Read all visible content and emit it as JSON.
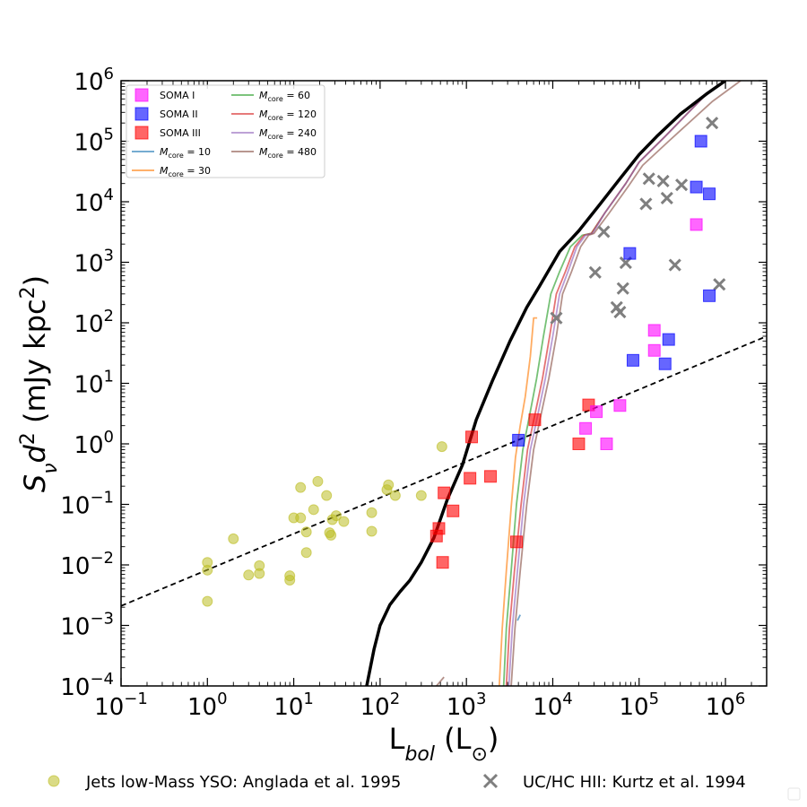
{
  "chart_data": {
    "type": "scatter",
    "x_scale": "log",
    "y_scale": "log",
    "xlim": [
      0.1,
      3000000
    ],
    "ylim": [
      0.0001,
      1000000
    ],
    "xlabel": "L_bol (L⊙)",
    "ylabel": "S_ν d² (mJy kpc²)",
    "x_ticks": [
      {
        "base": "10",
        "exp": "−1",
        "value": 0.1
      },
      {
        "base": "10",
        "exp": "0",
        "value": 1
      },
      {
        "base": "10",
        "exp": "1",
        "value": 10
      },
      {
        "base": "10",
        "exp": "2",
        "value": 100
      },
      {
        "base": "10",
        "exp": "3",
        "value": 1000
      },
      {
        "base": "10",
        "exp": "4",
        "value": 10000
      },
      {
        "base": "10",
        "exp": "5",
        "value": 100000
      },
      {
        "base": "10",
        "exp": "6",
        "value": 1000000
      }
    ],
    "y_ticks": [
      {
        "base": "10",
        "exp": "−4",
        "value": 0.0001
      },
      {
        "base": "10",
        "exp": "−3",
        "value": 0.001
      },
      {
        "base": "10",
        "exp": "−2",
        "value": 0.01
      },
      {
        "base": "10",
        "exp": "−1",
        "value": 0.1
      },
      {
        "base": "10",
        "exp": "0",
        "value": 1
      },
      {
        "base": "10",
        "exp": "1",
        "value": 10
      },
      {
        "base": "10",
        "exp": "2",
        "value": 100
      },
      {
        "base": "10",
        "exp": "3",
        "value": 1000
      },
      {
        "base": "10",
        "exp": "4",
        "value": 10000
      },
      {
        "base": "10",
        "exp": "5",
        "value": 100000
      },
      {
        "base": "10",
        "exp": "6",
        "value": 1000000
      }
    ],
    "legend_top_left": [
      {
        "label": "SOMA I",
        "kind": "square",
        "color": "#ff00ff"
      },
      {
        "label": "SOMA II",
        "kind": "square",
        "color": "#0000ff"
      },
      {
        "label": "SOMA III",
        "kind": "square",
        "color": "#ff0000"
      },
      {
        "prefix": "M",
        "sub": "core",
        "label": " = 10",
        "kind": "line",
        "color": "#1f77b4"
      },
      {
        "prefix": "M",
        "sub": "core",
        "label": " = 30",
        "kind": "line",
        "color": "#ff7f0e"
      },
      {
        "prefix": "M",
        "sub": "core",
        "label": " = 60",
        "kind": "line",
        "color": "#2ca02c"
      },
      {
        "prefix": "M",
        "sub": "core",
        "label": " = 120",
        "kind": "line",
        "color": "#d62728"
      },
      {
        "prefix": "M",
        "sub": "core",
        "label": " = 240",
        "kind": "line",
        "color": "#9467bd"
      },
      {
        "prefix": "M",
        "sub": "core",
        "label": " = 480",
        "kind": "line",
        "color": "#8c564b"
      }
    ],
    "legend_bottom": [
      {
        "label": "Jets low-Mass YSO: Anglada et al. 1995",
        "kind": "circle",
        "color": "#bcbd22"
      },
      {
        "label": "UC/HC HII: Kurtz et al. 1994",
        "kind": "cross",
        "color": "#7f7f7f"
      }
    ],
    "series": {
      "soma1": {
        "color": "#ff00ff",
        "points": [
          [
            24000.0,
            1.8
          ],
          [
            32000.0,
            3.4
          ],
          [
            42000.0,
            1.0
          ],
          [
            60000.0,
            4.3
          ],
          [
            150000.0,
            75
          ],
          [
            150000.0,
            35
          ],
          [
            460000.0,
            4200
          ]
        ]
      },
      "soma2": {
        "color": "#0000ff",
        "points": [
          [
            4000.0,
            1.15
          ],
          [
            78000.0,
            1400
          ],
          [
            85000.0,
            24
          ],
          [
            200000.0,
            21
          ],
          [
            220000.0,
            53
          ],
          [
            460000.0,
            17500
          ],
          [
            520000.0,
            100000
          ],
          [
            650000.0,
            13500
          ],
          [
            650000.0,
            280
          ]
        ]
      },
      "soma3": {
        "color": "#ff0000",
        "points": [
          [
            450.0,
            0.03
          ],
          [
            480.0,
            0.04
          ],
          [
            530.0,
            0.011
          ],
          [
            550.0,
            0.155
          ],
          [
            700.0,
            0.078
          ],
          [
            1100.0,
            0.27
          ],
          [
            1150.0,
            1.3
          ],
          [
            1900.0,
            0.29
          ],
          [
            3800.0,
            0.024
          ],
          [
            6200.0,
            2.5
          ],
          [
            20000.0,
            1.0
          ],
          [
            26000.0,
            4.4
          ]
        ]
      },
      "anglada": {
        "color": "#bcbd22",
        "points": [
          [
            1,
            0.0025
          ],
          [
            1,
            0.0082
          ],
          [
            1,
            0.011
          ],
          [
            2,
            0.027
          ],
          [
            3,
            0.0068
          ],
          [
            4,
            0.0072
          ],
          [
            4,
            0.0097
          ],
          [
            9,
            0.0056
          ],
          [
            9,
            0.0066
          ],
          [
            10,
            0.06
          ],
          [
            12,
            0.06
          ],
          [
            12,
            0.19
          ],
          [
            14,
            0.016
          ],
          [
            14,
            0.035
          ],
          [
            17,
            0.082
          ],
          [
            19,
            0.24
          ],
          [
            24,
            0.14
          ],
          [
            26,
            0.034
          ],
          [
            27,
            0.031
          ],
          [
            28,
            0.056
          ],
          [
            31,
            0.065
          ],
          [
            38,
            0.052
          ],
          [
            80,
            0.036
          ],
          [
            80,
            0.073
          ],
          [
            120,
            0.175
          ],
          [
            125,
            0.21
          ],
          [
            150,
            0.14
          ],
          [
            300,
            0.14
          ],
          [
            520,
            0.9
          ]
        ]
      },
      "kurtz": {
        "color": "#7f7f7f",
        "points": [
          [
            11000.0,
            120
          ],
          [
            31000.0,
            680
          ],
          [
            39000.0,
            3200
          ],
          [
            55000.0,
            180
          ],
          [
            60000.0,
            150
          ],
          [
            65000.0,
            370
          ],
          [
            70000.0,
            980
          ],
          [
            120000.0,
            9200
          ],
          [
            130000.0,
            24000
          ],
          [
            190000.0,
            22000
          ],
          [
            210000.0,
            11500
          ],
          [
            260000.0,
            900
          ],
          [
            310000.0,
            19000
          ],
          [
            700000.0,
            200000
          ],
          [
            850000.0,
            430
          ]
        ]
      },
      "fit_dashed": {
        "color": "#000000",
        "points": [
          [
            0.1,
            0.0021
          ],
          [
            3000000,
            60
          ]
        ]
      },
      "envelope_black": {
        "color": "#000000",
        "points": [
          [
            70,
            0.0001
          ],
          [
            85,
            0.0004
          ],
          [
            100,
            0.001
          ],
          [
            130,
            0.0022
          ],
          [
            170,
            0.0036
          ],
          [
            220,
            0.0055
          ],
          [
            300,
            0.011
          ],
          [
            420,
            0.028
          ],
          [
            600,
            0.12
          ],
          [
            900,
            0.45
          ],
          [
            1300,
            2.5
          ],
          [
            2000,
            11
          ],
          [
            3200,
            50
          ],
          [
            5000,
            180
          ],
          [
            7000,
            400
          ],
          [
            12000,
            1500
          ],
          [
            20000,
            3300
          ],
          [
            35000,
            9000
          ],
          [
            60000,
            24000
          ],
          [
            100000,
            60000
          ],
          [
            160000,
            120000
          ],
          [
            300000,
            280000
          ],
          [
            600000,
            600000
          ],
          [
            1000000,
            1000000
          ]
        ]
      },
      "mcore_curves": [
        {
          "name_mass": "10",
          "color": "#1f77b4",
          "points": [
            [
              3900,
              0.0012
            ],
            [
              4200,
              0.0015
            ]
          ]
        },
        {
          "name_mass": "30",
          "color": "#ff7f0e",
          "points": [
            [
              2400,
              0.0001
            ],
            [
              2600,
              0.0009
            ],
            [
              2900,
              0.008
            ],
            [
              3300,
              0.09
            ],
            [
              3700,
              0.6
            ],
            [
              4200,
              2.0
            ],
            [
              4800,
              6
            ],
            [
              5500,
              28
            ],
            [
              6000,
              120
            ],
            [
              6600,
              120
            ]
          ]
        },
        {
          "name_mass": "60",
          "color": "#2ca02c",
          "points": [
            [
              2700,
              0.0001
            ],
            [
              2900,
              0.0009
            ],
            [
              3300,
              0.008
            ],
            [
              3800,
              0.1
            ],
            [
              4500,
              0.8
            ],
            [
              5400,
              3.0
            ],
            [
              6500,
              12
            ],
            [
              7800,
              60
            ],
            [
              9500,
              300
            ],
            [
              12000,
              700
            ],
            [
              16000,
              1800
            ],
            [
              22000,
              2800
            ],
            [
              28000,
              3000
            ],
            [
              40000,
              6500
            ],
            [
              70000,
              20000
            ],
            [
              100000,
              45000
            ],
            [
              200000,
              120000
            ],
            [
              600000,
              600000
            ],
            [
              1200000,
              1200000
            ]
          ]
        },
        {
          "name_mass": "120",
          "color": "#d62728",
          "points": [
            [
              2900,
              0.0001
            ],
            [
              3150,
              0.0009
            ],
            [
              3600,
              0.008
            ],
            [
              4300,
              0.1
            ],
            [
              5100,
              0.8
            ],
            [
              6200,
              3.0
            ],
            [
              7600,
              12
            ],
            [
              9200,
              60
            ],
            [
              11000,
              300
            ],
            [
              14000,
              700
            ],
            [
              18000,
              1800
            ],
            [
              23000,
              2800
            ],
            [
              28000,
              3000
            ],
            [
              40000,
              6500
            ],
            [
              70000,
              20000
            ],
            [
              100000,
              45000
            ],
            [
              200000,
              120000
            ],
            [
              600000,
              600000
            ],
            [
              1200000,
              1200000
            ]
          ]
        },
        {
          "name_mass": "240",
          "color": "#9467bd",
          "points": [
            [
              3100,
              0.0001
            ],
            [
              3400,
              0.0009
            ],
            [
              3900,
              0.008
            ],
            [
              4600,
              0.1
            ],
            [
              5500,
              0.8
            ],
            [
              6700,
              3.0
            ],
            [
              8200,
              12
            ],
            [
              10000,
              60
            ],
            [
              12000,
              300
            ],
            [
              15000,
              700
            ],
            [
              19000,
              1800
            ],
            [
              24000,
              2800
            ],
            [
              29000,
              3000
            ],
            [
              40000,
              6500
            ],
            [
              70000,
              20000
            ],
            [
              100000,
              45000
            ],
            [
              200000,
              120000
            ],
            [
              600000,
              600000
            ],
            [
              1200000,
              1200000
            ]
          ]
        },
        {
          "name_mass": "480",
          "color": "#8c564b",
          "points": [
            [
              3300,
              0.0001
            ],
            [
              3650,
              0.0009
            ],
            [
              4200,
              0.008
            ],
            [
              5000,
              0.1
            ],
            [
              6000,
              0.8
            ],
            [
              7300,
              3.0
            ],
            [
              9000,
              12
            ],
            [
              11000,
              60
            ],
            [
              13000,
              300
            ],
            [
              16500,
              700
            ],
            [
              21000,
              1800
            ],
            [
              26000,
              2800
            ],
            [
              30000,
              3000
            ],
            [
              45000,
              6500
            ],
            [
              75000,
              18000
            ],
            [
              110000,
              40000
            ],
            [
              220000,
              100000
            ],
            [
              700000,
              450000
            ],
            [
              1500000,
              1000000
            ]
          ]
        },
        {
          "name_mass": "480-low",
          "color": "#8c564b",
          "points": [
            [
              450,
              0.0001
            ],
            [
              550,
              0.00014
            ]
          ]
        }
      ]
    }
  }
}
